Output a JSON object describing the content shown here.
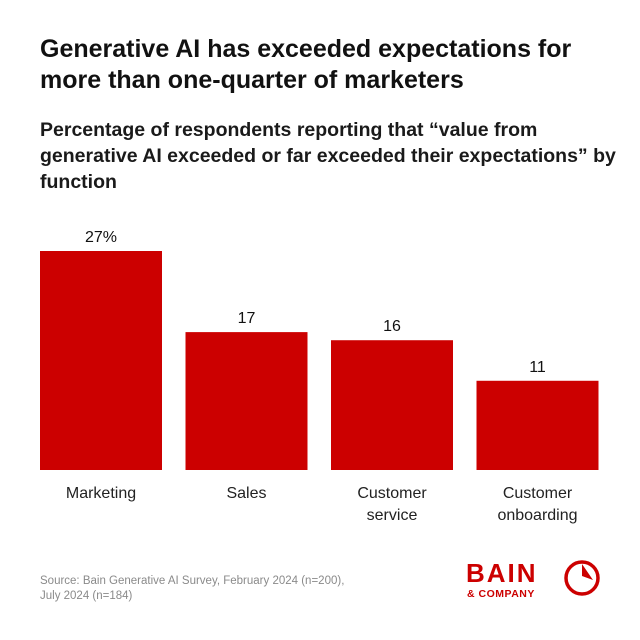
{
  "title": "Generative AI has exceeded expectations for more than one-quarter of marketers",
  "subtitle": "Percentage of respondents reporting that “value from generative AI exceeded or far exceeded their expectations” by function",
  "chart_data": {
    "type": "bar",
    "title": "Generative AI has exceeded expectations for more than one-quarter of marketers",
    "subtitle": "Percentage of respondents reporting that “value from generative AI exceeded or far exceeded their expectations” by function",
    "categories": [
      [
        "Marketing"
      ],
      [
        "Sales"
      ],
      [
        "Customer",
        "service"
      ],
      [
        "Customer",
        "onboarding"
      ]
    ],
    "values": [
      27,
      17,
      16,
      11
    ],
    "value_labels": [
      "27%",
      "17",
      "16",
      "11"
    ],
    "xlabel": "",
    "ylabel": "",
    "ylim": [
      0,
      27
    ],
    "grid": false,
    "bar_color": "#cc0000"
  },
  "source": {
    "line1": "Source: Bain Generative AI Survey, February 2024 (n=200),",
    "line2": "July 2024 (n=184)"
  },
  "logo": {
    "word": "BAIN",
    "sub": "& COMPANY",
    "color": "#cc0000"
  }
}
